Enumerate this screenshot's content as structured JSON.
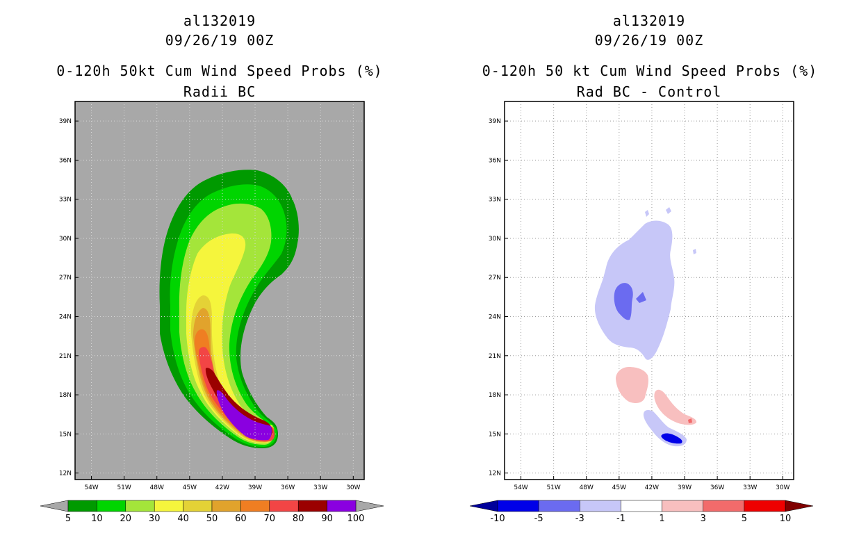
{
  "chart_data": [
    {
      "type": "heatmap",
      "storm_id": "al132019",
      "date": "09/26/19 00Z",
      "title": "0-120h 50kt Cum Wind Speed Probs (%)",
      "subtitle": "Radii BC",
      "x_ticks": [
        "54W",
        "51W",
        "48W",
        "45W",
        "42W",
        "39W",
        "36W",
        "33W",
        "30W"
      ],
      "y_ticks": [
        "39N",
        "36N",
        "33N",
        "30N",
        "27N",
        "24N",
        "21N",
        "18N",
        "15N",
        "12N"
      ],
      "xlim": [
        -55.5,
        -29
      ],
      "ylim": [
        11.5,
        40.5
      ],
      "colorbar": {
        "labels": [
          "5",
          "10",
          "20",
          "30",
          "40",
          "50",
          "60",
          "70",
          "80",
          "90",
          "100"
        ],
        "colors": [
          "#009a00",
          "#00d500",
          "#a4e53a",
          "#f5f53c",
          "#e4d236",
          "#e1a32c",
          "#ef7e22",
          "#f24545",
          "#9b0000",
          "#8a00e0"
        ],
        "under_color": "#a8a8a8",
        "over_color": "#a8a8a8"
      },
      "background_color": "#a8a8a8"
    },
    {
      "type": "heatmap",
      "storm_id": "al132019",
      "date": "09/26/19 00Z",
      "title": "0-120h 50 kt Cum Wind Speed Probs (%)",
      "subtitle": "Rad BC - Control",
      "x_ticks": [
        "54W",
        "51W",
        "48W",
        "45W",
        "42W",
        "39W",
        "36W",
        "33W",
        "30W"
      ],
      "y_ticks": [
        "39N",
        "36N",
        "33N",
        "30N",
        "27N",
        "24N",
        "21N",
        "18N",
        "15N",
        "12N"
      ],
      "xlim": [
        -55.5,
        -29
      ],
      "ylim": [
        11.5,
        40.5
      ],
      "colorbar": {
        "labels": [
          "-10",
          "-5",
          "-3",
          "-1",
          "1",
          "3",
          "5",
          "10"
        ],
        "colors": [
          "#0000e8",
          "#6b6bf0",
          "#c7c7f8",
          "#ffffff",
          "#f8bfbf",
          "#f26b6b",
          "#ee0000"
        ],
        "under_color": "#00009a",
        "over_color": "#800000"
      },
      "background_color": "#ffffff"
    }
  ]
}
